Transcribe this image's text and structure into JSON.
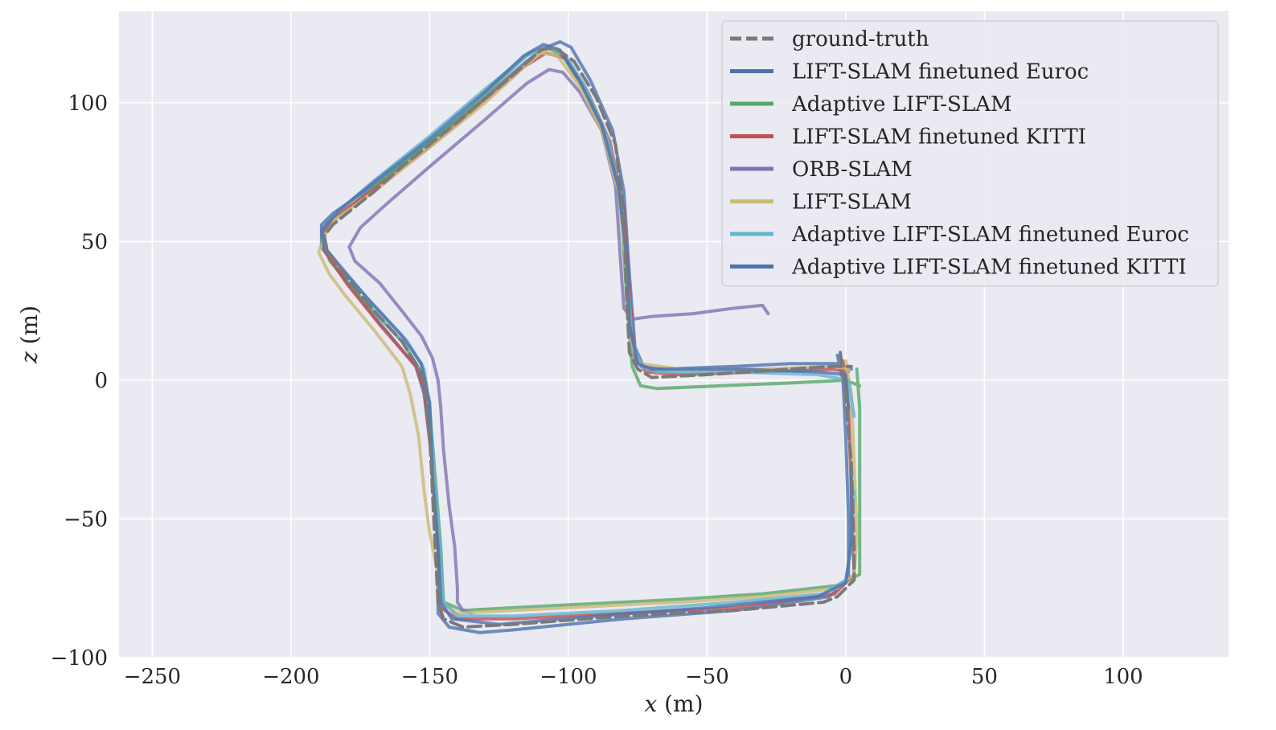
{
  "chart_data": {
    "type": "line",
    "xlabel_var": "x",
    "xlabel_unit": " (m)",
    "ylabel_var": "z",
    "ylabel_unit": " (m)",
    "xlim": [
      -262,
      138
    ],
    "ylim": [
      -100,
      133
    ],
    "xticks": [
      -250,
      -200,
      -150,
      -100,
      -50,
      0,
      50,
      100
    ],
    "yticks": [
      -100,
      -50,
      0,
      50,
      100
    ],
    "xtick_labels": [
      "−250",
      "−200",
      "−150",
      "−100",
      "−50",
      "0",
      "50",
      "100"
    ],
    "ytick_labels": [
      "−100",
      "−50",
      "0",
      "50",
      "100"
    ],
    "grid": true,
    "legend_position": "top-right",
    "series": [
      {
        "name": "ground-truth",
        "color": "#7a7a7a",
        "dashed": true,
        "points": [
          [
            -2,
            10
          ],
          [
            0,
            -5
          ],
          [
            2,
            -30
          ],
          [
            3,
            -60
          ],
          [
            3,
            -72
          ],
          [
            -3,
            -78
          ],
          [
            -8,
            -80
          ],
          [
            -40,
            -83
          ],
          [
            -80,
            -85
          ],
          [
            -120,
            -88
          ],
          [
            -138,
            -89
          ],
          [
            -145,
            -86
          ],
          [
            -147,
            -80
          ],
          [
            -148,
            -60
          ],
          [
            -150,
            -20
          ],
          [
            -152,
            0
          ],
          [
            -155,
            6
          ],
          [
            -160,
            14
          ],
          [
            -170,
            25
          ],
          [
            -180,
            37
          ],
          [
            -187,
            47
          ],
          [
            -188,
            52
          ],
          [
            -185,
            56
          ],
          [
            -180,
            60
          ],
          [
            -170,
            68
          ],
          [
            -160,
            77
          ],
          [
            -140,
            93
          ],
          [
            -120,
            110
          ],
          [
            -110,
            119
          ],
          [
            -105,
            120
          ],
          [
            -98,
            115
          ],
          [
            -90,
            102
          ],
          [
            -83,
            85
          ],
          [
            -80,
            60
          ],
          [
            -79,
            30
          ],
          [
            -78,
            10
          ],
          [
            -75,
            4
          ],
          [
            -70,
            1
          ],
          [
            -50,
            2
          ],
          [
            -20,
            4
          ],
          [
            -5,
            5
          ],
          [
            2,
            5
          ]
        ]
      },
      {
        "name": "LIFT-SLAM finetuned Euroc",
        "color": "#4c72b0",
        "dashed": false,
        "points": [
          [
            -3,
            9
          ],
          [
            -1,
            0
          ],
          [
            0,
            -20
          ],
          [
            1,
            -50
          ],
          [
            1,
            -72
          ],
          [
            -6,
            -78
          ],
          [
            -40,
            -83
          ],
          [
            -80,
            -86
          ],
          [
            -120,
            -90
          ],
          [
            -132,
            -91
          ],
          [
            -143,
            -89
          ],
          [
            -147,
            -84
          ],
          [
            -147,
            -60
          ],
          [
            -149,
            -30
          ],
          [
            -152,
            -5
          ],
          [
            -155,
            5
          ],
          [
            -170,
            23
          ],
          [
            -182,
            38
          ],
          [
            -189,
            48
          ],
          [
            -189,
            56
          ],
          [
            -185,
            60
          ],
          [
            -168,
            72
          ],
          [
            -150,
            86
          ],
          [
            -130,
            102
          ],
          [
            -115,
            115
          ],
          [
            -108,
            120
          ],
          [
            -103,
            122
          ],
          [
            -99,
            120
          ],
          [
            -92,
            108
          ],
          [
            -84,
            90
          ],
          [
            -80,
            68
          ],
          [
            -78,
            38
          ],
          [
            -76,
            12
          ],
          [
            -73,
            5
          ],
          [
            -65,
            4
          ],
          [
            -40,
            5
          ],
          [
            -20,
            6
          ],
          [
            -3,
            6
          ],
          [
            2,
            4
          ]
        ]
      },
      {
        "name": "Adaptive LIFT-SLAM",
        "color": "#55a868",
        "dashed": false,
        "points": [
          [
            4,
            4
          ],
          [
            5,
            -10
          ],
          [
            5,
            -30
          ],
          [
            5,
            -55
          ],
          [
            5,
            -70
          ],
          [
            -3,
            -74
          ],
          [
            -30,
            -77
          ],
          [
            -60,
            -79
          ],
          [
            -80,
            -80
          ],
          [
            -100,
            -81
          ],
          [
            -120,
            -82
          ],
          [
            -138,
            -83
          ],
          [
            -145,
            -80
          ],
          [
            -146,
            -60
          ],
          [
            -148,
            -35
          ],
          [
            -150,
            -10
          ],
          [
            -153,
            3
          ],
          [
            -160,
            14
          ],
          [
            -175,
            30
          ],
          [
            -186,
            43
          ],
          [
            -189,
            51
          ],
          [
            -186,
            57
          ],
          [
            -178,
            63
          ],
          [
            -160,
            78
          ],
          [
            -140,
            94
          ],
          [
            -125,
            108
          ],
          [
            -114,
            118
          ],
          [
            -108,
            120
          ],
          [
            -102,
            117
          ],
          [
            -94,
            104
          ],
          [
            -86,
            86
          ],
          [
            -81,
            62
          ],
          [
            -79,
            30
          ],
          [
            -77,
            5
          ],
          [
            -74,
            -2
          ],
          [
            -68,
            -3
          ],
          [
            -45,
            -2
          ],
          [
            -20,
            -1
          ],
          [
            0,
            0
          ],
          [
            5,
            -2
          ]
        ]
      },
      {
        "name": "LIFT-SLAM finetuned KITTI",
        "color": "#c44e52",
        "dashed": false,
        "points": [
          [
            -1,
            7
          ],
          [
            1,
            -10
          ],
          [
            2,
            -40
          ],
          [
            3,
            -70
          ],
          [
            -4,
            -77
          ],
          [
            -40,
            -82
          ],
          [
            -80,
            -84
          ],
          [
            -120,
            -86
          ],
          [
            -140,
            -86
          ],
          [
            -146,
            -82
          ],
          [
            -147,
            -60
          ],
          [
            -149,
            -30
          ],
          [
            -152,
            -3
          ],
          [
            -155,
            5
          ],
          [
            -168,
            20
          ],
          [
            -180,
            35
          ],
          [
            -188,
            47
          ],
          [
            -188,
            54
          ],
          [
            -184,
            59
          ],
          [
            -170,
            69
          ],
          [
            -150,
            84
          ],
          [
            -130,
            101
          ],
          [
            -116,
            113
          ],
          [
            -108,
            118
          ],
          [
            -101,
            116
          ],
          [
            -93,
            104
          ],
          [
            -85,
            86
          ],
          [
            -80,
            62
          ],
          [
            -78,
            32
          ],
          [
            -76,
            8
          ],
          [
            -72,
            3
          ],
          [
            -60,
            2
          ],
          [
            -30,
            3
          ],
          [
            -5,
            4
          ],
          [
            1,
            3
          ]
        ]
      },
      {
        "name": "ORB-SLAM",
        "color": "#8172b3",
        "dashed": false,
        "points": [
          [
            -28,
            24
          ],
          [
            -30,
            27
          ],
          [
            -40,
            26
          ],
          [
            -55,
            24
          ],
          [
            -70,
            23
          ],
          [
            -77,
            22
          ],
          [
            -80,
            26
          ],
          [
            -81,
            40
          ],
          [
            -83,
            70
          ],
          [
            -88,
            90
          ],
          [
            -96,
            104
          ],
          [
            -102,
            111
          ],
          [
            -107,
            112
          ],
          [
            -115,
            107
          ],
          [
            -130,
            94
          ],
          [
            -150,
            77
          ],
          [
            -165,
            64
          ],
          [
            -175,
            55
          ],
          [
            -179,
            48
          ],
          [
            -177,
            43
          ],
          [
            -168,
            35
          ],
          [
            -160,
            25
          ],
          [
            -153,
            16
          ],
          [
            -149,
            8
          ],
          [
            -147,
            0
          ],
          [
            -146,
            -10
          ],
          [
            -145,
            -25
          ],
          [
            -143,
            -45
          ],
          [
            -141,
            -60
          ],
          [
            -140,
            -75
          ],
          [
            -140,
            -80
          ],
          [
            -138,
            -83
          ],
          [
            -135,
            -84
          ]
        ]
      },
      {
        "name": "LIFT-SLAM",
        "color": "#ccb974",
        "dashed": false,
        "points": [
          [
            0,
            7
          ],
          [
            2,
            -5
          ],
          [
            3,
            -30
          ],
          [
            4,
            -55
          ],
          [
            3,
            -70
          ],
          [
            -3,
            -75
          ],
          [
            -30,
            -78
          ],
          [
            -60,
            -80
          ],
          [
            -80,
            -81
          ],
          [
            -100,
            -82
          ],
          [
            -120,
            -83
          ],
          [
            -140,
            -84
          ],
          [
            -146,
            -80
          ],
          [
            -147,
            -70
          ],
          [
            -150,
            -55
          ],
          [
            -152,
            -40
          ],
          [
            -154,
            -20
          ],
          [
            -157,
            -5
          ],
          [
            -160,
            5
          ],
          [
            -170,
            18
          ],
          [
            -180,
            30
          ],
          [
            -186,
            38
          ],
          [
            -190,
            46
          ],
          [
            -188,
            52
          ],
          [
            -184,
            58
          ],
          [
            -170,
            68
          ],
          [
            -150,
            84
          ],
          [
            -130,
            100
          ],
          [
            -117,
            112
          ],
          [
            -110,
            118
          ],
          [
            -104,
            117
          ],
          [
            -96,
            106
          ],
          [
            -88,
            90
          ],
          [
            -82,
            68
          ],
          [
            -79,
            40
          ],
          [
            -78,
            15
          ],
          [
            -74,
            6
          ],
          [
            -60,
            4
          ],
          [
            -30,
            4
          ],
          [
            -5,
            5
          ],
          [
            1,
            4
          ]
        ]
      },
      {
        "name": "Adaptive LIFT-SLAM finetuned Euroc",
        "color": "#64b5cd",
        "dashed": false,
        "points": [
          [
            3,
            -13
          ],
          [
            1,
            0
          ],
          [
            -10,
            2
          ],
          [
            -40,
            3
          ],
          [
            -68,
            3
          ],
          [
            -74,
            5
          ],
          [
            -77,
            15
          ],
          [
            -79,
            40
          ],
          [
            -81,
            66
          ],
          [
            -86,
            88
          ],
          [
            -94,
            106
          ],
          [
            -101,
            117
          ],
          [
            -107,
            120
          ],
          [
            -115,
            117
          ],
          [
            -130,
            105
          ],
          [
            -150,
            88
          ],
          [
            -170,
            72
          ],
          [
            -184,
            60
          ],
          [
            -189,
            54
          ],
          [
            -188,
            48
          ],
          [
            -182,
            40
          ],
          [
            -170,
            27
          ],
          [
            -158,
            14
          ],
          [
            -152,
            4
          ],
          [
            -150,
            -10
          ],
          [
            -148,
            -40
          ],
          [
            -146,
            -65
          ],
          [
            -145,
            -80
          ],
          [
            -140,
            -85
          ],
          [
            -120,
            -85
          ],
          [
            -80,
            -83
          ],
          [
            -40,
            -80
          ],
          [
            -8,
            -77
          ],
          [
            0,
            -72
          ],
          [
            2,
            -60
          ],
          [
            3,
            -40
          ]
        ]
      },
      {
        "name": "Adaptive LIFT-SLAM finetuned KITTI",
        "color": "#4c72b0",
        "dashed": false,
        "points": [
          [
            1,
            -10
          ],
          [
            0,
            2
          ],
          [
            -10,
            3
          ],
          [
            -40,
            4
          ],
          [
            -70,
            4
          ],
          [
            -75,
            6
          ],
          [
            -78,
            20
          ],
          [
            -79,
            45
          ],
          [
            -82,
            70
          ],
          [
            -88,
            92
          ],
          [
            -96,
            108
          ],
          [
            -103,
            119
          ],
          [
            -109,
            121
          ],
          [
            -116,
            117
          ],
          [
            -130,
            104
          ],
          [
            -150,
            87
          ],
          [
            -168,
            73
          ],
          [
            -183,
            61
          ],
          [
            -189,
            54
          ],
          [
            -188,
            48
          ],
          [
            -183,
            42
          ],
          [
            -172,
            29
          ],
          [
            -160,
            16
          ],
          [
            -153,
            6
          ],
          [
            -150,
            -8
          ],
          [
            -149,
            -35
          ],
          [
            -147,
            -60
          ],
          [
            -146,
            -80
          ],
          [
            -142,
            -86
          ],
          [
            -125,
            -88
          ],
          [
            -90,
            -85
          ],
          [
            -50,
            -82
          ],
          [
            -10,
            -78
          ],
          [
            0,
            -73
          ],
          [
            2,
            -58
          ],
          [
            2,
            -35
          ]
        ]
      }
    ]
  }
}
